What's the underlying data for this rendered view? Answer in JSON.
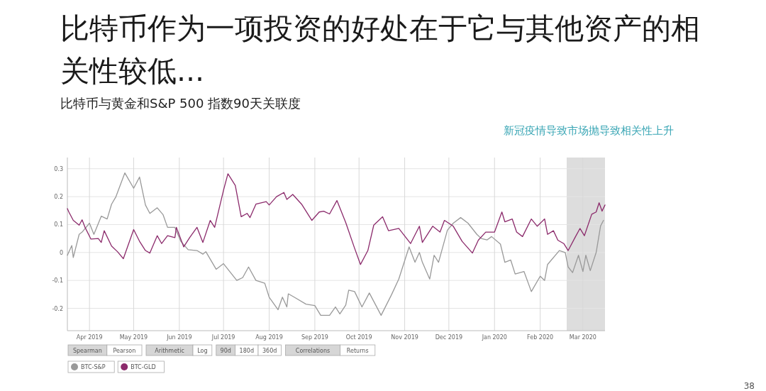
{
  "chart_data": {
    "type": "line",
    "title": "比特币作为一项投资的好处在于它与其他资产的相关性较低...",
    "subtitle": "比特币与黄金和S&P 500 指数90天关联度",
    "xlim": [
      "2019-03-17",
      "2020-03-16"
    ],
    "xticks": [
      {
        "value": "2019-04-01",
        "label": "Apr 2019"
      },
      {
        "value": "2019-05-01",
        "label": "May 2019"
      },
      {
        "value": "2019-06-01",
        "label": "Jun 2019"
      },
      {
        "value": "2019-07-01",
        "label": "Jul 2019"
      },
      {
        "value": "2019-08-01",
        "label": "Aug 2019"
      },
      {
        "value": "2019-09-01",
        "label": "Sep 2019"
      },
      {
        "value": "2019-10-01",
        "label": "Oct 2019"
      },
      {
        "value": "2019-11-01",
        "label": "Nov 2019"
      },
      {
        "value": "2019-12-01",
        "label": "Dec 2019"
      },
      {
        "value": "2020-01-01",
        "label": "Jan 2020"
      },
      {
        "value": "2020-02-01",
        "label": "Feb 2020"
      },
      {
        "value": "2020-03-01",
        "label": "Mar 2020"
      }
    ],
    "ylim": [
      -0.28,
      0.34
    ],
    "yticks": [
      -0.2,
      -0.1,
      0,
      0.1,
      0.2,
      0.3
    ],
    "grid": true,
    "legend": "bottom left",
    "marker": "none",
    "line_style": "solid",
    "bands": [
      {
        "axis": "x",
        "from": "2020-02-19",
        "to": "2020-03-16",
        "label": "新冠疫情导致市场抛导致相关性上升",
        "color": "#dddddd"
      }
    ],
    "annotations": [
      "Spearman",
      "Pearson",
      "Arithmetic",
      "Log",
      "90d",
      "180d",
      "360d",
      "Correlations",
      "Returns",
      "38"
    ],
    "series": [
      {
        "name": "BTC-S&P",
        "color": "#999999",
        "x": [
          "2019-03-17",
          "2019-03-20",
          "2019-03-21",
          "2019-03-25",
          "2019-03-27",
          "2019-04-01",
          "2019-04-04",
          "2019-04-09",
          "2019-04-13",
          "2019-04-16",
          "2019-04-19",
          "2019-04-25",
          "2019-05-01",
          "2019-05-05",
          "2019-05-09",
          "2019-05-12",
          "2019-05-17",
          "2019-05-21",
          "2019-05-24",
          "2019-05-29",
          "2019-06-02",
          "2019-06-07",
          "2019-06-13",
          "2019-06-17",
          "2019-06-19",
          "2019-06-26",
          "2019-07-01",
          "2019-07-10",
          "2019-07-14",
          "2019-07-18",
          "2019-07-23",
          "2019-07-29",
          "2019-08-01",
          "2019-08-07",
          "2019-08-10",
          "2019-08-13",
          "2019-08-14",
          "2019-08-18",
          "2019-08-26",
          "2019-09-01",
          "2019-09-05",
          "2019-09-11",
          "2019-09-15",
          "2019-09-18",
          "2019-09-22",
          "2019-09-24",
          "2019-09-28",
          "2019-10-03",
          "2019-10-08",
          "2019-10-16",
          "2019-10-23",
          "2019-10-28",
          "2019-11-04",
          "2019-11-08",
          "2019-11-11",
          "2019-11-13",
          "2019-11-18",
          "2019-11-21",
          "2019-11-24",
          "2019-11-30",
          "2019-12-04",
          "2019-12-09",
          "2019-12-14",
          "2019-12-20",
          "2019-12-23",
          "2019-12-27",
          "2019-12-30",
          "2020-01-05",
          "2020-01-08",
          "2020-01-12",
          "2020-01-15",
          "2020-01-21",
          "2020-01-26",
          "2020-02-01",
          "2020-02-04",
          "2020-02-06",
          "2020-02-14",
          "2020-02-18",
          "2020-02-20",
          "2020-02-23",
          "2020-02-27",
          "2020-03-01",
          "2020-03-03",
          "2020-03-06",
          "2020-03-10",
          "2020-03-13",
          "2020-03-15"
        ],
        "values": [
          -0.01,
          0.025,
          -0.018,
          0.065,
          0.073,
          0.105,
          0.065,
          0.13,
          0.12,
          0.173,
          0.2,
          0.285,
          0.23,
          0.27,
          0.17,
          0.14,
          0.16,
          0.135,
          0.09,
          0.09,
          0.04,
          0.01,
          0.007,
          -0.006,
          0.003,
          -0.06,
          -0.04,
          -0.1,
          -0.09,
          -0.052,
          -0.1,
          -0.11,
          -0.16,
          -0.205,
          -0.16,
          -0.195,
          -0.148,
          -0.16,
          -0.185,
          -0.19,
          -0.225,
          -0.225,
          -0.195,
          -0.22,
          -0.188,
          -0.135,
          -0.14,
          -0.195,
          -0.145,
          -0.225,
          -0.152,
          -0.095,
          0.02,
          -0.035,
          0.0,
          -0.035,
          -0.095,
          -0.01,
          -0.035,
          0.08,
          0.105,
          0.125,
          0.105,
          0.065,
          0.05,
          0.045,
          0.057,
          0.03,
          -0.035,
          -0.027,
          -0.077,
          -0.068,
          -0.14,
          -0.085,
          -0.1,
          -0.043,
          0.007,
          0.0,
          -0.052,
          -0.072,
          -0.01,
          -0.068,
          -0.01,
          -0.065,
          0.0,
          0.095,
          0.115
        ]
      },
      {
        "name": "BTC-GLD",
        "color": "#8b2a6b",
        "x": [
          "2019-03-17",
          "2019-03-18",
          "2019-03-21",
          "2019-03-25",
          "2019-03-27",
          "2019-03-29",
          "2019-04-02",
          "2019-04-07",
          "2019-04-09",
          "2019-04-11",
          "2019-04-16",
          "2019-04-20",
          "2019-04-24",
          "2019-05-01",
          "2019-05-05",
          "2019-05-09",
          "2019-05-12",
          "2019-05-17",
          "2019-05-20",
          "2019-05-24",
          "2019-05-29",
          "2019-05-30",
          "2019-06-04",
          "2019-06-08",
          "2019-06-13",
          "2019-06-17",
          "2019-06-22",
          "2019-06-25",
          "2019-07-01",
          "2019-07-04",
          "2019-07-09",
          "2019-07-13",
          "2019-07-17",
          "2019-07-19",
          "2019-07-23",
          "2019-07-30",
          "2019-08-01",
          "2019-08-06",
          "2019-08-11",
          "2019-08-13",
          "2019-08-17",
          "2019-08-23",
          "2019-08-30",
          "2019-09-04",
          "2019-09-07",
          "2019-09-11",
          "2019-09-16",
          "2019-09-22",
          "2019-09-28",
          "2019-10-02",
          "2019-10-07",
          "2019-10-11",
          "2019-10-17",
          "2019-10-21",
          "2019-10-28",
          "2019-11-05",
          "2019-11-11",
          "2019-11-13",
          "2019-11-20",
          "2019-11-25",
          "2019-11-28",
          "2019-12-04",
          "2019-12-10",
          "2019-12-17",
          "2019-12-21",
          "2019-12-26",
          "2020-01-01",
          "2020-01-06",
          "2020-01-08",
          "2020-01-13",
          "2020-01-16",
          "2020-01-20",
          "2020-01-26",
          "2020-01-30",
          "2020-02-04",
          "2020-02-06",
          "2020-02-10",
          "2020-02-13",
          "2020-02-17",
          "2020-02-20",
          "2020-02-25",
          "2020-02-28",
          "2020-03-02",
          "2020-03-07",
          "2020-03-10",
          "2020-03-12",
          "2020-03-14",
          "2020-03-16"
        ],
        "values": [
          0.157,
          0.145,
          0.115,
          0.098,
          0.117,
          0.09,
          0.048,
          0.05,
          0.036,
          0.078,
          0.023,
          0.003,
          -0.022,
          0.082,
          0.04,
          0.007,
          -0.002,
          0.06,
          0.032,
          0.06,
          0.053,
          0.09,
          0.02,
          0.053,
          0.09,
          0.036,
          0.115,
          0.09,
          0.223,
          0.282,
          0.24,
          0.128,
          0.14,
          0.125,
          0.173,
          0.182,
          0.17,
          0.2,
          0.215,
          0.19,
          0.208,
          0.173,
          0.115,
          0.145,
          0.148,
          0.138,
          0.186,
          0.107,
          0.015,
          -0.043,
          0.007,
          0.098,
          0.128,
          0.078,
          0.086,
          0.032,
          0.094,
          0.036,
          0.094,
          0.073,
          0.115,
          0.094,
          0.04,
          -0.002,
          0.044,
          0.073,
          0.073,
          0.145,
          0.11,
          0.12,
          0.073,
          0.057,
          0.12,
          0.094,
          0.12,
          0.065,
          0.078,
          0.044,
          0.032,
          0.007,
          0.057,
          0.086,
          0.06,
          0.137,
          0.145,
          0.178,
          0.148,
          0.17
        ]
      }
    ]
  }
}
